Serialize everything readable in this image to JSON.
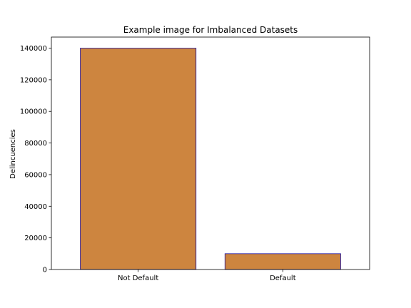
{
  "chart_data": {
    "type": "bar",
    "title": "Example image for Imbalanced Datasets",
    "xlabel": "",
    "ylabel": "Delincuencies",
    "categories": [
      "Not Default",
      "Default"
    ],
    "values": [
      140000,
      10000
    ],
    "ylim": [
      0,
      147000
    ],
    "yticks": [
      0,
      20000,
      40000,
      60000,
      80000,
      100000,
      120000,
      140000
    ],
    "grid": false,
    "colors": {
      "bar_fill": "#cd853f",
      "bar_edge": "#1a0ea0",
      "axis": "#000000"
    }
  }
}
